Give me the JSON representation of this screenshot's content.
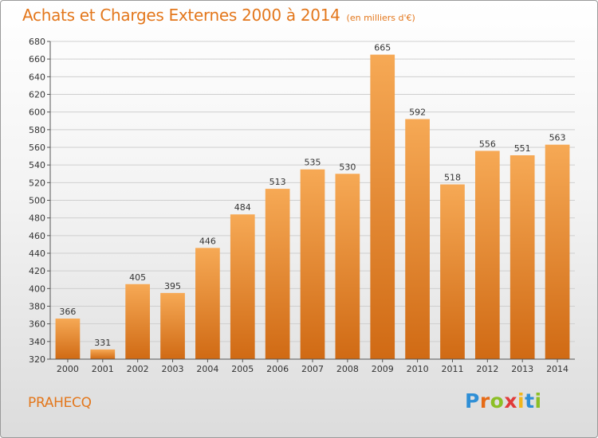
{
  "header": {
    "title": "Achats et Charges Externes 2000 à 2014",
    "unit": "(en milliers d'€)"
  },
  "footer": {
    "commune": "PRAHECQ",
    "logo_letters": [
      "P",
      "r",
      "o",
      "x",
      "i",
      "t",
      "i"
    ],
    "logo_colors": [
      "#2f8fd6",
      "#e66b17",
      "#8cbf26",
      "#e03a3a",
      "#f2b61c",
      "#2f8fd6",
      "#8cbf26"
    ]
  },
  "chart_data": {
    "type": "bar",
    "title": "Achats et Charges Externes 2000 à 2014",
    "subtitle": "(en milliers d'€)",
    "xlabel": "",
    "ylabel": "",
    "categories": [
      "2000",
      "2001",
      "2002",
      "2003",
      "2004",
      "2005",
      "2006",
      "2007",
      "2008",
      "2009",
      "2010",
      "2011",
      "2012",
      "2013",
      "2014"
    ],
    "values": [
      366,
      331,
      405,
      395,
      446,
      484,
      513,
      535,
      530,
      665,
      592,
      518,
      556,
      551,
      563
    ],
    "ylim": [
      320,
      680
    ],
    "yticks": [
      320,
      340,
      360,
      380,
      400,
      420,
      440,
      460,
      480,
      500,
      520,
      540,
      560,
      580,
      600,
      620,
      640,
      660,
      680
    ],
    "grid": true,
    "colors": {
      "bar_top": "#f6a955",
      "bar_bottom": "#d06a14",
      "grid": "#cfcfcf",
      "axis": "#555555"
    }
  }
}
